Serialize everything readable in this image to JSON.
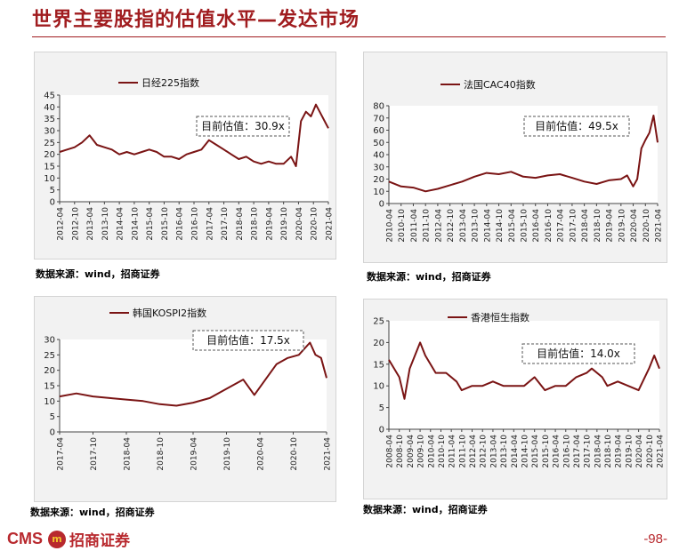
{
  "page": {
    "title": "世界主要股指的估值水平—发达市场",
    "page_number": "-98-",
    "logo_text": "CMS",
    "logo_mark": "m",
    "logo_cn": "招商证券",
    "accent_color": "#a01c1f",
    "line_color": "#7a1414"
  },
  "chart_data": [
    {
      "type": "line",
      "legend": "日经225指数",
      "annotation": "目前估值：30.9x",
      "source": "数据来源：wind，招商证券",
      "ylim": [
        0,
        45
      ],
      "yticks": [
        0,
        5,
        10,
        15,
        20,
        25,
        30,
        35,
        40,
        45
      ],
      "x_range": [
        "2012-04",
        "2021-04"
      ],
      "x_ticks": [
        "2012-04",
        "2012-10",
        "2013-04",
        "2013-10",
        "2014-04",
        "2014-10",
        "2015-04",
        "2015-10",
        "2016-04",
        "2016-10",
        "2017-04",
        "2017-10",
        "2018-04",
        "2018-10",
        "2019-04",
        "2019-10",
        "2020-04",
        "2020-10",
        "2021-04"
      ],
      "series": [
        {
          "x": [
            "2012-04",
            "2012-07",
            "2012-10",
            "2013-01",
            "2013-04",
            "2013-07",
            "2013-10",
            "2014-01",
            "2014-04",
            "2014-07",
            "2014-10",
            "2015-01",
            "2015-04",
            "2015-07",
            "2015-10",
            "2016-01",
            "2016-04",
            "2016-07",
            "2016-10",
            "2017-01",
            "2017-04",
            "2017-07",
            "2017-10",
            "2018-01",
            "2018-04",
            "2018-07",
            "2018-10",
            "2019-01",
            "2019-04",
            "2019-07",
            "2019-10",
            "2020-01",
            "2020-03",
            "2020-05",
            "2020-07",
            "2020-09",
            "2020-11",
            "2021-01",
            "2021-03",
            "2021-04"
          ],
          "values": [
            21,
            22,
            23,
            25,
            28,
            24,
            23,
            22,
            20,
            21,
            20,
            21,
            22,
            21,
            19,
            19,
            18,
            20,
            21,
            22,
            26,
            24,
            22,
            20,
            18,
            19,
            17,
            16,
            17,
            16,
            16,
            19,
            15,
            34,
            38,
            36,
            41,
            37,
            33,
            31
          ]
        }
      ]
    },
    {
      "type": "line",
      "legend": "法国CAC40指数",
      "annotation": "目前估值：49.5x",
      "source": "数据来源：wind，招商证券",
      "ylim": [
        0,
        80
      ],
      "yticks": [
        0,
        10,
        20,
        30,
        40,
        50,
        60,
        70,
        80
      ],
      "x_range": [
        "2010-04",
        "2021-04"
      ],
      "x_ticks": [
        "2010-04",
        "2010-10",
        "2011-04",
        "2011-10",
        "2012-04",
        "2012-10",
        "2013-04",
        "2013-10",
        "2014-04",
        "2014-10",
        "2015-04",
        "2015-10",
        "2016-04",
        "2016-10",
        "2017-04",
        "2017-10",
        "2018-04",
        "2018-10",
        "2019-04",
        "2019-10",
        "2020-04",
        "2020-10",
        "2021-04"
      ],
      "series": [
        {
          "x": [
            "2010-04",
            "2010-10",
            "2011-04",
            "2011-10",
            "2012-04",
            "2012-10",
            "2013-04",
            "2013-10",
            "2014-04",
            "2014-10",
            "2015-04",
            "2015-10",
            "2016-04",
            "2016-10",
            "2017-04",
            "2017-10",
            "2018-04",
            "2018-10",
            "2019-04",
            "2019-10",
            "2020-01",
            "2020-04",
            "2020-06",
            "2020-08",
            "2020-10",
            "2020-12",
            "2021-02",
            "2021-04"
          ],
          "values": [
            18,
            14,
            13,
            10,
            12,
            15,
            18,
            22,
            25,
            24,
            26,
            22,
            21,
            23,
            24,
            21,
            18,
            16,
            19,
            20,
            23,
            14,
            20,
            45,
            52,
            58,
            72,
            50
          ]
        }
      ]
    },
    {
      "type": "line",
      "legend": "韩国KOSPI2指数",
      "annotation": "目前估值：17.5x",
      "source": "数据来源：wind，招商证券",
      "ylim": [
        0,
        30
      ],
      "yticks": [
        0,
        5,
        10,
        15,
        20,
        25,
        30
      ],
      "x_range": [
        "2017-04",
        "2021-04"
      ],
      "x_ticks": [
        "2017-04",
        "2017-10",
        "2018-04",
        "2018-10",
        "2019-04",
        "2019-10",
        "2020-04",
        "2020-10",
        "2021-04"
      ],
      "series": [
        {
          "x": [
            "2017-04",
            "2017-07",
            "2017-10",
            "2018-01",
            "2018-04",
            "2018-07",
            "2018-10",
            "2019-01",
            "2019-04",
            "2019-07",
            "2019-10",
            "2020-01",
            "2020-03",
            "2020-05",
            "2020-07",
            "2020-09",
            "2020-11",
            "2021-01",
            "2021-02",
            "2021-03",
            "2021-04"
          ],
          "values": [
            11.5,
            12.5,
            11.5,
            11,
            10.5,
            10,
            9,
            8.5,
            9.5,
            11,
            14,
            17,
            12,
            17,
            22,
            24,
            25,
            29,
            25,
            24,
            17.5
          ]
        }
      ]
    },
    {
      "type": "line",
      "legend": "香港恒生指数",
      "annotation": "目前估值：14.0x",
      "source": "数据来源：wind，招商证券",
      "ylim": [
        0,
        25
      ],
      "yticks": [
        0,
        5,
        10,
        15,
        20,
        25
      ],
      "x_range": [
        "2008-04",
        "2021-04"
      ],
      "x_ticks": [
        "2008-04",
        "2008-10",
        "2009-04",
        "2009-10",
        "2010-04",
        "2010-10",
        "2011-04",
        "2011-10",
        "2012-04",
        "2012-10",
        "2013-04",
        "2013-10",
        "2014-04",
        "2014-10",
        "2015-04",
        "2015-10",
        "2016-04",
        "2016-10",
        "2017-04",
        "2017-10",
        "2018-04",
        "2018-10",
        "2019-04",
        "2019-10",
        "2020-04",
        "2020-10",
        "2021-04"
      ],
      "series": [
        {
          "x": [
            "2008-04",
            "2008-10",
            "2009-01",
            "2009-04",
            "2009-10",
            "2010-01",
            "2010-07",
            "2011-01",
            "2011-07",
            "2011-10",
            "2012-04",
            "2012-10",
            "2013-04",
            "2013-10",
            "2014-04",
            "2014-10",
            "2015-04",
            "2015-10",
            "2016-04",
            "2016-10",
            "2017-04",
            "2017-10",
            "2018-01",
            "2018-07",
            "2018-10",
            "2019-04",
            "2019-10",
            "2020-04",
            "2020-10",
            "2021-01",
            "2021-04"
          ],
          "values": [
            16,
            12,
            7,
            14,
            20,
            17,
            13,
            13,
            11,
            9,
            10,
            10,
            11,
            10,
            10,
            10,
            12,
            9,
            10,
            10,
            12,
            13,
            14,
            12,
            10,
            11,
            10,
            9,
            14,
            17,
            14
          ]
        }
      ]
    }
  ]
}
